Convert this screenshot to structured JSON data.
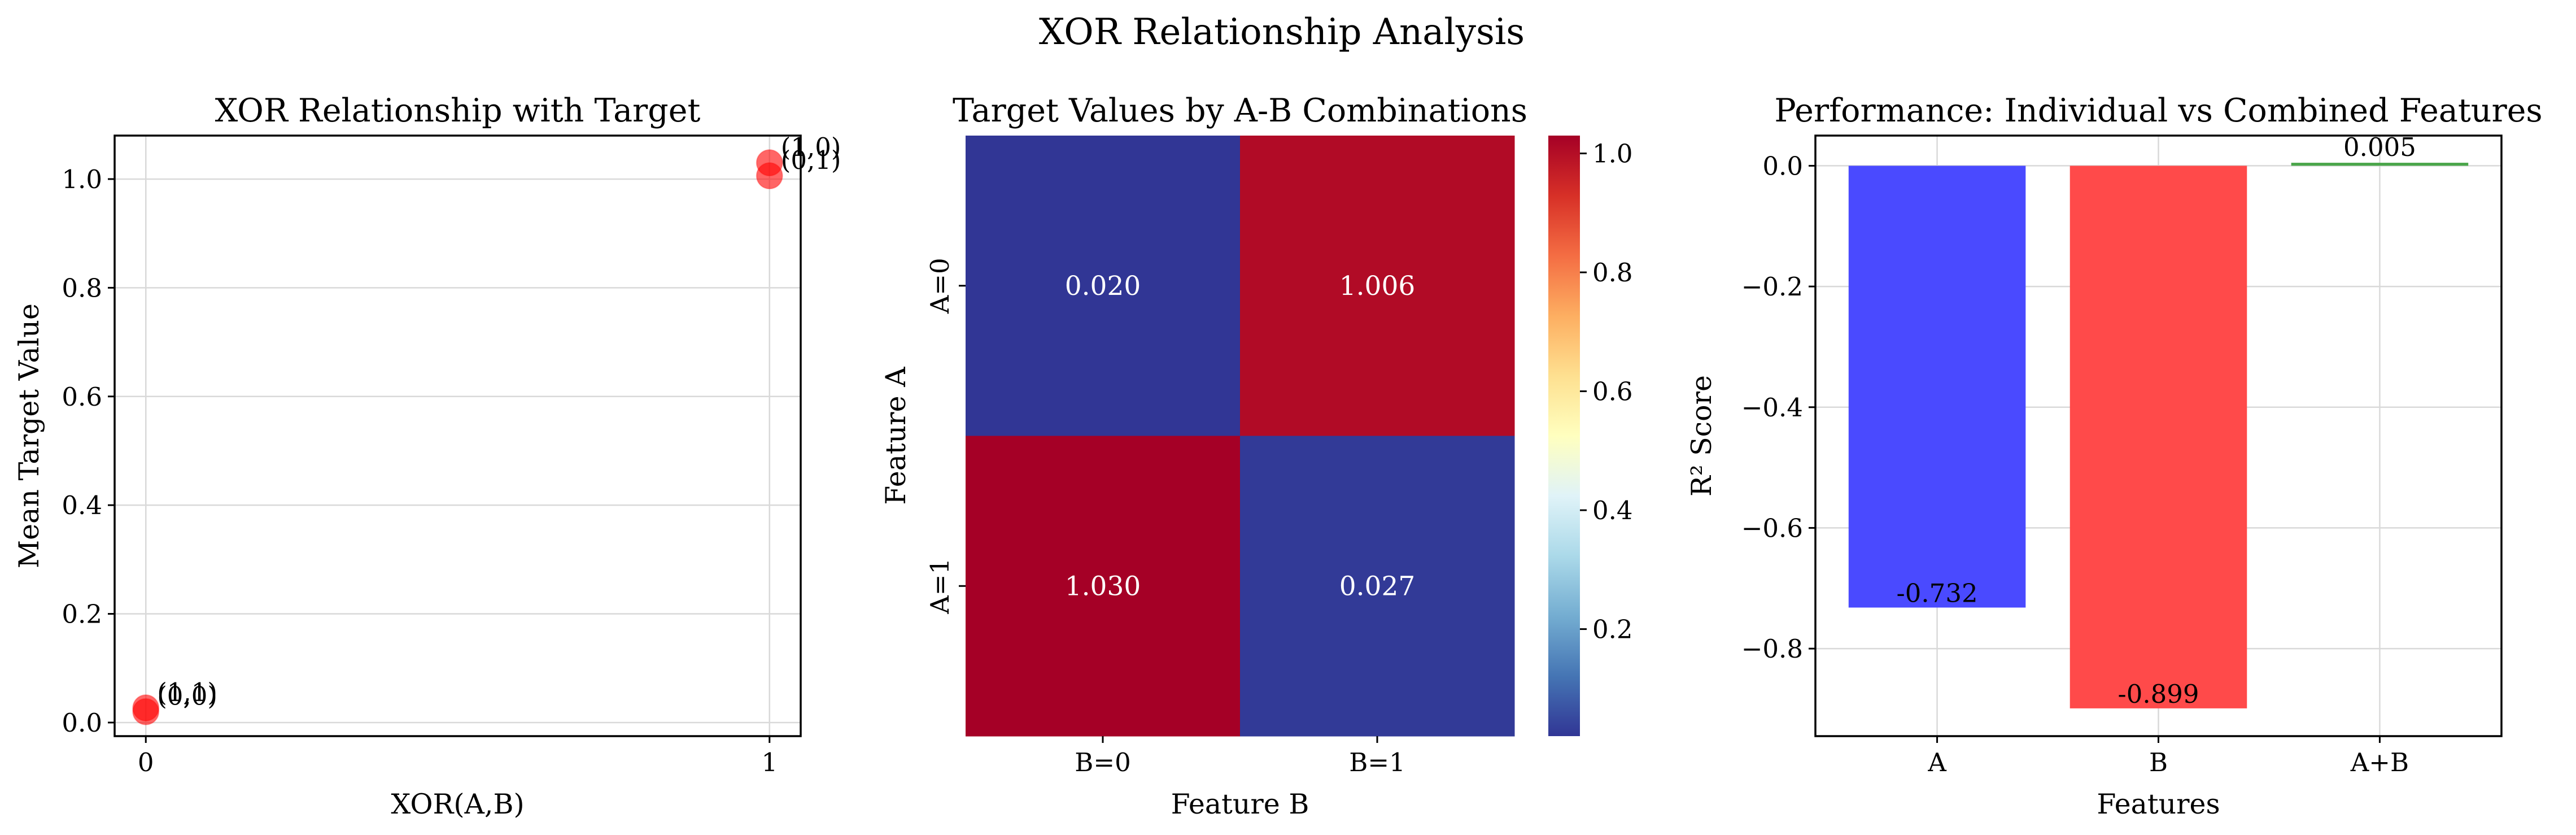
{
  "figure_title": "XOR Relationship Analysis",
  "chart_data": [
    {
      "type": "scatter",
      "title": "XOR Relationship with Target",
      "xlabel": "XOR(A,B)",
      "ylabel": "Mean Target Value",
      "xticks": [
        0,
        1
      ],
      "xlim": [
        -0.05,
        1.05
      ],
      "ylim": [
        -0.025,
        1.08
      ],
      "yticks": [
        0.0,
        0.2,
        0.4,
        0.6,
        0.8,
        1.0
      ],
      "grid": true,
      "color": "#ff0000",
      "points": [
        {
          "x": 0,
          "y": 0.02,
          "label": "(0,0)"
        },
        {
          "x": 1,
          "y": 1.006,
          "label": "(0,1)"
        },
        {
          "x": 1,
          "y": 1.03,
          "label": "(1,0)"
        },
        {
          "x": 0,
          "y": 0.027,
          "label": "(1,1)"
        }
      ]
    },
    {
      "type": "heatmap",
      "title": "Target Values by A-B Combinations",
      "xlabel": "Feature B",
      "ylabel": "Feature A",
      "x_categories": [
        "B=0",
        "B=1"
      ],
      "y_categories": [
        "A=0",
        "A=1"
      ],
      "values": [
        [
          0.02,
          1.006
        ],
        [
          1.03,
          0.027
        ]
      ],
      "value_labels": [
        [
          "0.020",
          "1.006"
        ],
        [
          "1.030",
          "0.027"
        ]
      ],
      "colormap": "RdYlBu_r",
      "colorbar_range": [
        0.02,
        1.03
      ],
      "colorbar_ticks": [
        0.2,
        0.4,
        0.6,
        0.8,
        1.0
      ]
    },
    {
      "type": "bar",
      "title": "Performance: Individual vs Combined Features",
      "xlabel": "Features",
      "ylabel": "R² Score",
      "categories": [
        "A",
        "B",
        "A+B"
      ],
      "values": [
        -0.732,
        -0.899,
        0.005
      ],
      "value_labels": [
        "-0.732",
        "-0.899",
        "0.005"
      ],
      "colors": [
        "#4a4aff",
        "#ff4a4a",
        "#4aa64a"
      ],
      "ylim": [
        -0.945,
        0.05
      ],
      "yticks": [
        0.0,
        -0.2,
        -0.4,
        -0.6,
        -0.8
      ],
      "ytick_labels": [
        "0.0",
        "−0.2",
        "−0.4",
        "−0.6",
        "−0.8"
      ],
      "grid": true
    }
  ]
}
